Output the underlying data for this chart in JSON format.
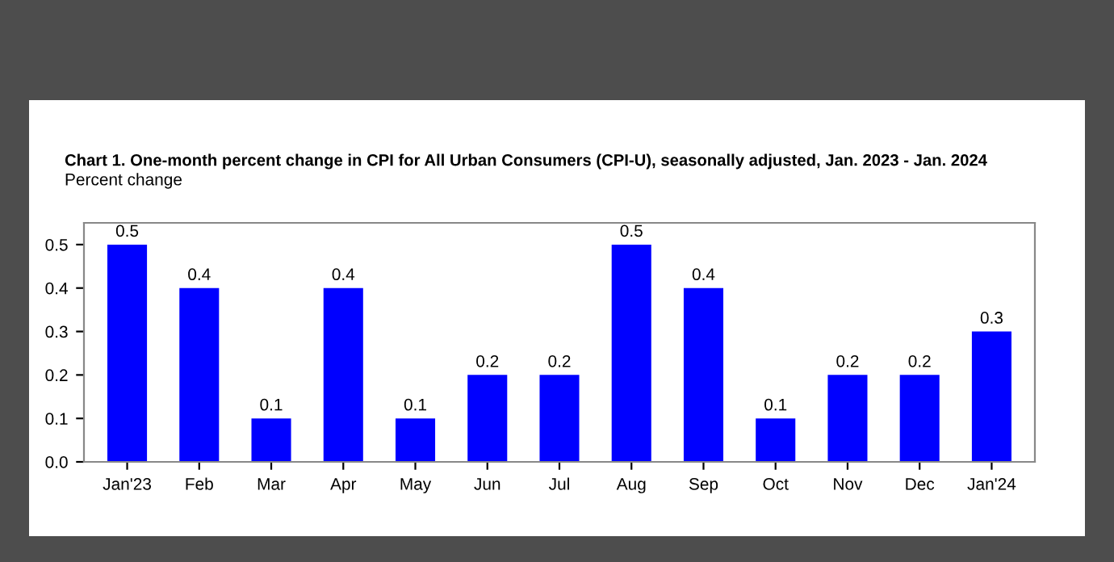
{
  "chart_data": {
    "type": "bar",
    "title": "Chart 1. One-month percent change in CPI for All Urban Consumers (CPI-U), seasonally adjusted, Jan. 2023 - Jan. 2024",
    "subtitle": "Percent change",
    "categories": [
      "Jan'23",
      "Feb",
      "Mar",
      "Apr",
      "May",
      "Jun",
      "Jul",
      "Aug",
      "Sep",
      "Oct",
      "Nov",
      "Dec",
      "Jan'24"
    ],
    "values": [
      0.5,
      0.4,
      0.1,
      0.4,
      0.1,
      0.2,
      0.2,
      0.5,
      0.4,
      0.1,
      0.2,
      0.2,
      0.3
    ],
    "color": "#0000ff",
    "ylim": [
      0,
      0.55
    ],
    "yticks": [
      {
        "value": 0,
        "label": "0.0"
      },
      0.1,
      0.2,
      0.3,
      0.4,
      0.5
    ],
    "data_labels": true,
    "grid": false
  }
}
